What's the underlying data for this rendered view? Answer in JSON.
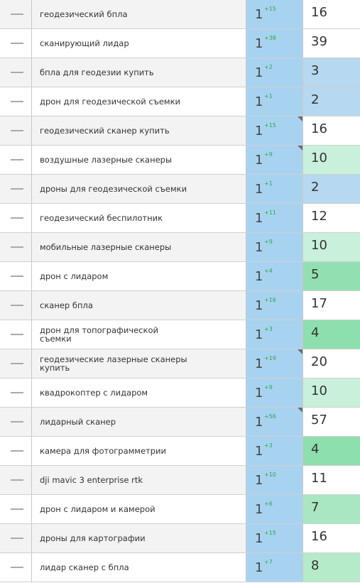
{
  "table": {
    "rows": [
      {
        "keyword": "геодезический бпла",
        "position": "1",
        "change": "+15",
        "value": "16",
        "color": "#ffffff",
        "corner_mark": false
      },
      {
        "keyword": "сканирующий лидар",
        "position": "1",
        "change": "+38",
        "value": "39",
        "color": "#ffffff",
        "corner_mark": false
      },
      {
        "keyword": "бпла для геодезии купить",
        "position": "1",
        "change": "+2",
        "value": "3",
        "color": "#b6d8f0",
        "corner_mark": false
      },
      {
        "keyword": "дрон для геодезической съемки",
        "position": "1",
        "change": "+1",
        "value": "2",
        "color": "#b6d8f0",
        "corner_mark": false
      },
      {
        "keyword": "геодезический сканер купить",
        "position": "1",
        "change": "+15",
        "value": "16",
        "color": "#ffffff",
        "corner_mark": true
      },
      {
        "keyword": "воздушные лазерные сканеры",
        "position": "1",
        "change": "+9",
        "value": "10",
        "color": "#c8f0da",
        "corner_mark": true
      },
      {
        "keyword": "дроны для геодезической съемки",
        "position": "1",
        "change": "+1",
        "value": "2",
        "color": "#b6d8f0",
        "corner_mark": false
      },
      {
        "keyword": "геодезический беспилотник",
        "position": "1",
        "change": "+11",
        "value": "12",
        "color": "#ffffff",
        "corner_mark": false
      },
      {
        "keyword": "мобильные лазерные сканеры",
        "position": "1",
        "change": "+9",
        "value": "10",
        "color": "#c8f0da",
        "corner_mark": false
      },
      {
        "keyword": "дрон с лидаром",
        "position": "1",
        "change": "+4",
        "value": "5",
        "color": "#92e0b2",
        "corner_mark": false
      },
      {
        "keyword": "сканер бпла",
        "position": "1",
        "change": "+16",
        "value": "17",
        "color": "#ffffff",
        "corner_mark": false
      },
      {
        "keyword": "дрон для топографической съемки",
        "position": "1",
        "change": "+3",
        "value": "4",
        "color": "#8ddfae",
        "corner_mark": false
      },
      {
        "keyword": "геодезические лазерные сканеры купить",
        "position": "1",
        "change": "+19",
        "value": "20",
        "color": "#ffffff",
        "corner_mark": true
      },
      {
        "keyword": "квадрокоптер с лидаром",
        "position": "1",
        "change": "+9",
        "value": "10",
        "color": "#c8f0da",
        "corner_mark": false
      },
      {
        "keyword": "лидарный сканер",
        "position": "1",
        "change": "+56",
        "value": "57",
        "color": "#ffffff",
        "corner_mark": true
      },
      {
        "keyword": "камера для фотограмметрии",
        "position": "1",
        "change": "+3",
        "value": "4",
        "color": "#8ddfae",
        "corner_mark": false
      },
      {
        "keyword": "dji mavic 3 enterprise rtk",
        "position": "1",
        "change": "+10",
        "value": "11",
        "color": "#ffffff",
        "corner_mark": false
      },
      {
        "keyword": "дрон с лидаром и камерой",
        "position": "1",
        "change": "+6",
        "value": "7",
        "color": "#a9e7c2",
        "corner_mark": false
      },
      {
        "keyword": "дроны для картографии",
        "position": "1",
        "change": "+15",
        "value": "16",
        "color": "#ffffff",
        "corner_mark": false
      },
      {
        "keyword": "лидар сканер с бпла",
        "position": "1",
        "change": "+7",
        "value": "8",
        "color": "#b5ebc9",
        "corner_mark": false
      }
    ]
  }
}
